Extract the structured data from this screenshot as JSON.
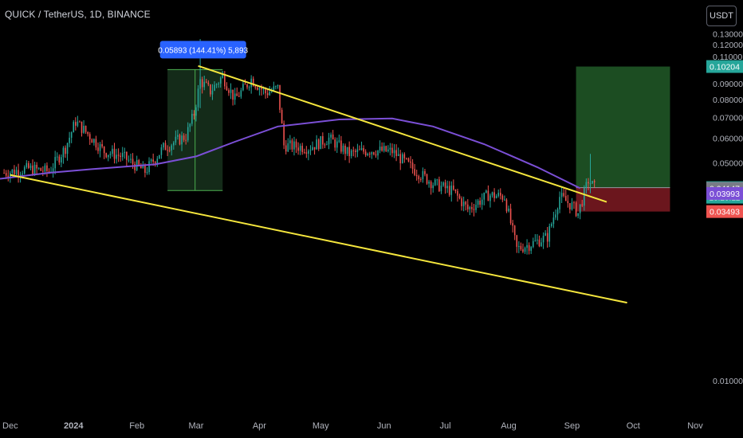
{
  "header": {
    "symbol_title": "QUICK / TetherUS, 1D, BINANCE"
  },
  "currency_button": {
    "label": "USDT"
  },
  "colors": {
    "background": "#000000",
    "axis_text": "#b2b5be",
    "candle_up": "#26a69a",
    "candle_down": "#ef5350",
    "moving_average": "#7b4fd6",
    "trendline": "#f5e63d",
    "target_zone": "#1c4d22",
    "stop_zone": "#6b161d",
    "measure_zone": "#17331d",
    "measure_label": "#2962ff"
  },
  "chart_data": {
    "type": "candlestick",
    "title": "QUICK / TetherUS, 1D, BINANCE",
    "x_axis_labels": [
      "Dec",
      "2024",
      "Feb",
      "Mar",
      "Apr",
      "May",
      "Jun",
      "Jul",
      "Aug",
      "Sep",
      "Oct",
      "Nov"
    ],
    "y_axis_ticks": [
      "0.01000",
      "0.04000",
      "0.05000",
      "0.06000",
      "0.07000",
      "0.08000",
      "0.09000",
      "0.10000",
      "0.11000",
      "0.12000",
      "0.13000"
    ],
    "y_scale": "log",
    "ylim": [
      0.008,
      0.135
    ],
    "xlim": [
      "2023-11-26",
      "2024-11-05"
    ],
    "moving_average": [
      {
        "date": "2023-11-26",
        "value": 0.0445
      },
      {
        "date": "2023-12-20",
        "value": 0.0465
      },
      {
        "date": "2024-01-10",
        "value": 0.0478
      },
      {
        "date": "2024-02-10",
        "value": 0.0495
      },
      {
        "date": "2024-03-01",
        "value": 0.0525
      },
      {
        "date": "2024-03-20",
        "value": 0.0585
      },
      {
        "date": "2024-04-10",
        "value": 0.0655
      },
      {
        "date": "2024-05-10",
        "value": 0.069
      },
      {
        "date": "2024-06-05",
        "value": 0.0695
      },
      {
        "date": "2024-06-25",
        "value": 0.0655
      },
      {
        "date": "2024-07-20",
        "value": 0.0575
      },
      {
        "date": "2024-08-15",
        "value": 0.0485
      },
      {
        "date": "2024-09-05",
        "value": 0.0415
      }
    ],
    "trendlines": [
      {
        "name": "upper",
        "from": {
          "date": "2024-03-02",
          "value": 0.1025
        },
        "to": {
          "date": "2024-09-18",
          "value": 0.0375
        }
      },
      {
        "name": "lower",
        "from": {
          "date": "2023-12-01",
          "value": 0.0458
        },
        "to": {
          "date": "2024-09-28",
          "value": 0.0178
        }
      }
    ],
    "measure": {
      "from_date": "2024-02-16",
      "to_date": "2024-03-14",
      "low": 0.0408,
      "high": 0.0998,
      "label": "0.05893 (144.41%) 5,893"
    },
    "position": {
      "from_date": "2024-09-03",
      "to_date": "2024-10-19",
      "entry": 0.04168,
      "target": 0.10204,
      "stop": 0.03493
    },
    "price_labels": [
      {
        "value": 0.10204,
        "text": "0.10204",
        "color": "#26a69a"
      },
      {
        "value": 0.04168,
        "text": "0.04168",
        "sub": "18:29:12",
        "color": "#26a69a"
      },
      {
        "value": 0.04147,
        "text": "0.04147",
        "color": "#787b86"
      },
      {
        "value": 0.03993,
        "text": "0.03993",
        "color": "#7b4fd6"
      },
      {
        "value": 0.03493,
        "text": "0.03493",
        "color": "#ef5350"
      }
    ],
    "candle_anchors": [
      {
        "date": "2023-11-28",
        "close": 0.0465
      },
      {
        "date": "2023-12-10",
        "close": 0.048
      },
      {
        "date": "2023-12-20",
        "close": 0.047
      },
      {
        "date": "2023-12-28",
        "close": 0.056
      },
      {
        "date": "2024-01-02",
        "close": 0.068
      },
      {
        "date": "2024-01-08",
        "close": 0.062
      },
      {
        "date": "2024-01-16",
        "close": 0.0545
      },
      {
        "date": "2024-01-25",
        "close": 0.0525
      },
      {
        "date": "2024-02-05",
        "close": 0.047
      },
      {
        "date": "2024-02-14",
        "close": 0.056
      },
      {
        "date": "2024-02-25",
        "close": 0.061
      },
      {
        "date": "2024-02-29",
        "close": 0.072
      },
      {
        "date": "2024-03-03",
        "close": 0.092
      },
      {
        "date": "2024-03-08",
        "close": 0.085
      },
      {
        "date": "2024-03-14",
        "close": 0.095
      },
      {
        "date": "2024-03-20",
        "close": 0.08
      },
      {
        "date": "2024-03-28",
        "close": 0.093
      },
      {
        "date": "2024-04-04",
        "close": 0.084
      },
      {
        "date": "2024-04-10",
        "close": 0.087
      },
      {
        "date": "2024-04-13",
        "close": 0.057
      },
      {
        "date": "2024-04-25",
        "close": 0.056
      },
      {
        "date": "2024-05-05",
        "close": 0.06
      },
      {
        "date": "2024-05-15",
        "close": 0.0535
      },
      {
        "date": "2024-05-25",
        "close": 0.055
      },
      {
        "date": "2024-06-05",
        "close": 0.0545
      },
      {
        "date": "2024-06-15",
        "close": 0.048
      },
      {
        "date": "2024-06-25",
        "close": 0.043
      },
      {
        "date": "2024-07-05",
        "close": 0.0405
      },
      {
        "date": "2024-07-12",
        "close": 0.0355
      },
      {
        "date": "2024-07-22",
        "close": 0.0395
      },
      {
        "date": "2024-07-30",
        "close": 0.039
      },
      {
        "date": "2024-08-05",
        "close": 0.0265
      },
      {
        "date": "2024-08-12",
        "close": 0.0275
      },
      {
        "date": "2024-08-20",
        "close": 0.029
      },
      {
        "date": "2024-08-26",
        "close": 0.039
      },
      {
        "date": "2024-09-01",
        "close": 0.0365
      },
      {
        "date": "2024-09-04",
        "close": 0.0345
      },
      {
        "date": "2024-09-09",
        "close": 0.044
      },
      {
        "date": "2024-09-12",
        "close": 0.0417
      }
    ]
  }
}
